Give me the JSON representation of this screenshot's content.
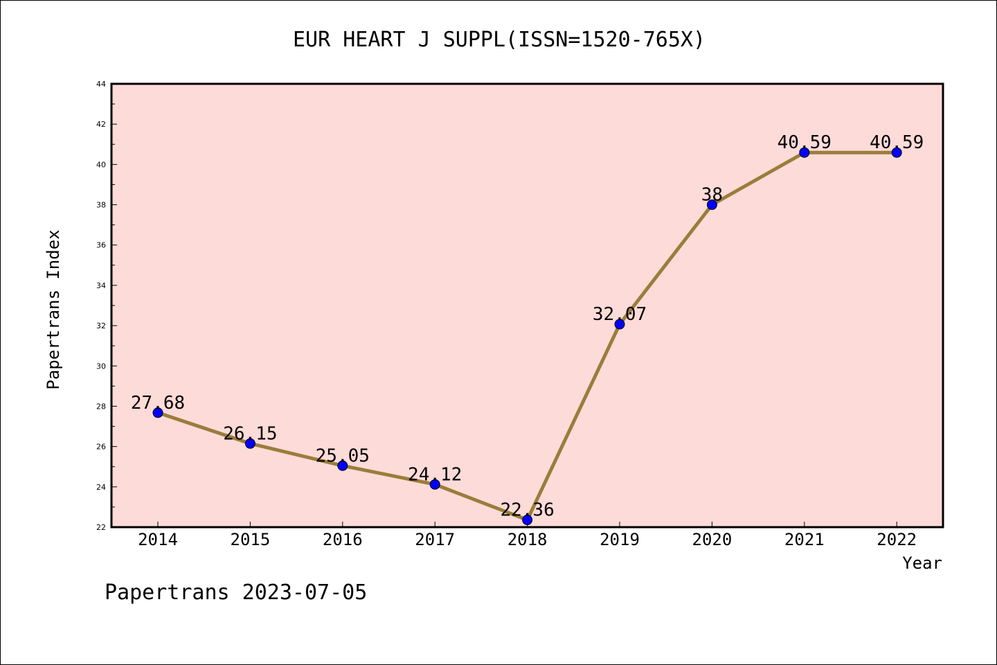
{
  "chart_data": {
    "type": "line",
    "title": "EUR HEART J SUPPL(ISSN=1520-765X)",
    "xlabel": "Year",
    "ylabel": "Papertrans Index",
    "categories": [
      "2014",
      "2015",
      "2016",
      "2017",
      "2018",
      "2019",
      "2020",
      "2021",
      "2022"
    ],
    "series": [
      {
        "values": [
          27.68,
          26.15,
          25.05,
          24.12,
          22.36,
          32.07,
          38,
          40.59,
          40.59
        ],
        "labels": [
          "27.68",
          "26.15",
          "25.05",
          "24.12",
          "22.36",
          "32.07",
          "38",
          "40.59",
          "40.59"
        ]
      }
    ],
    "ylim": [
      22,
      44
    ],
    "yticks": [
      22,
      24,
      26,
      28,
      30,
      32,
      34,
      36,
      38,
      40,
      42,
      44
    ],
    "grid": false,
    "legend": "none",
    "colors": {
      "plot_background": "#fddbd9",
      "line": "#9a7d3a",
      "marker": "#0000ff",
      "axis": "#000000"
    }
  },
  "footer": "Papertrans 2023-07-05"
}
